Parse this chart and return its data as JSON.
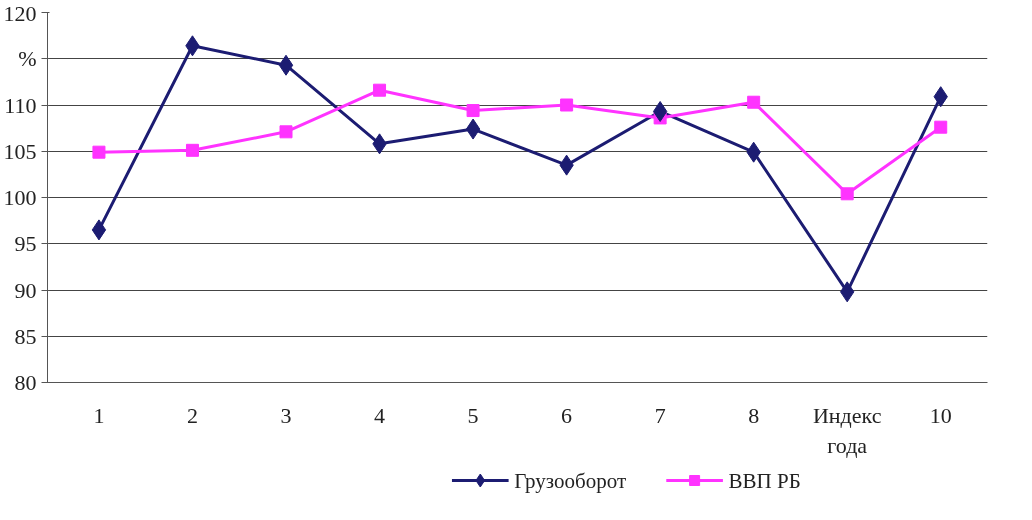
{
  "chart_data": {
    "type": "line",
    "ylabel": "%",
    "xlabel": "Индекс года",
    "categories": [
      "1",
      "2",
      "3",
      "4",
      "5",
      "6",
      "7",
      "8",
      null,
      "10"
    ],
    "ylim": [
      80,
      120
    ],
    "yticks": [
      80,
      85,
      90,
      95,
      100,
      105,
      110,
      {
        "value": 115,
        "label": null
      },
      120
    ],
    "grid": "y",
    "legend": "bottom",
    "line_style": "solid",
    "series": [
      {
        "name": "Грузооборот",
        "color": "#1c1c72",
        "marker": "diamond",
        "values": [
          96.5,
          116.4,
          114.3,
          105.8,
          107.4,
          103.5,
          109.3,
          104.9,
          89.8,
          110.9
        ]
      },
      {
        "name": "ВВП РБ",
        "color": "#ff33ff",
        "marker": "square",
        "values": [
          104.9,
          105.1,
          107.1,
          111.6,
          109.4,
          110.0,
          108.6,
          110.3,
          100.4,
          107.6
        ]
      }
    ]
  }
}
